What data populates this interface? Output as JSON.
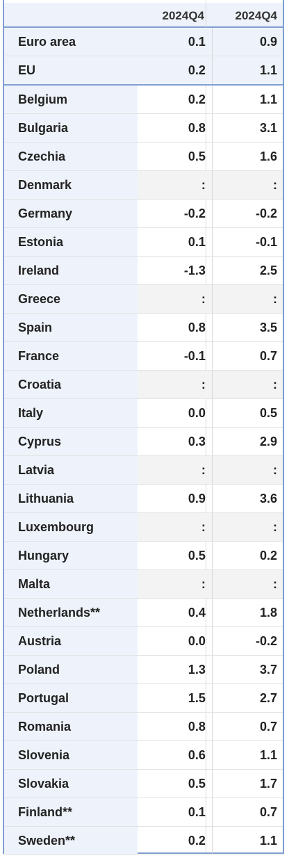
{
  "chart_data": {
    "type": "table",
    "columns": [
      "2024Q4",
      "2024Q4"
    ],
    "rows": [
      {
        "country": "Euro area",
        "v1": "0.1",
        "v2": "0.9"
      },
      {
        "country": "EU",
        "v1": "0.2",
        "v2": "1.1"
      },
      {
        "country": "Belgium",
        "v1": "0.2",
        "v2": "1.1"
      },
      {
        "country": "Bulgaria",
        "v1": "0.8",
        "v2": "3.1"
      },
      {
        "country": "Czechia",
        "v1": "0.5",
        "v2": "1.6"
      },
      {
        "country": "Denmark",
        "v1": ":",
        "v2": ":"
      },
      {
        "country": "Germany",
        "v1": "-0.2",
        "v2": "-0.2"
      },
      {
        "country": "Estonia",
        "v1": "0.1",
        "v2": "-0.1"
      },
      {
        "country": "Ireland",
        "v1": "-1.3",
        "v2": "2.5"
      },
      {
        "country": "Greece",
        "v1": ":",
        "v2": ":"
      },
      {
        "country": "Spain",
        "v1": "0.8",
        "v2": "3.5"
      },
      {
        "country": "France",
        "v1": "-0.1",
        "v2": "0.7"
      },
      {
        "country": "Croatia",
        "v1": ":",
        "v2": ":"
      },
      {
        "country": "Italy",
        "v1": "0.0",
        "v2": "0.5"
      },
      {
        "country": "Cyprus",
        "v1": "0.3",
        "v2": "2.9"
      },
      {
        "country": "Latvia",
        "v1": ":",
        "v2": ":"
      },
      {
        "country": "Lithuania",
        "v1": "0.9",
        "v2": "3.6"
      },
      {
        "country": "Luxembourg",
        "v1": ":",
        "v2": ":"
      },
      {
        "country": "Hungary",
        "v1": "0.5",
        "v2": "0.2"
      },
      {
        "country": "Malta",
        "v1": ":",
        "v2": ":"
      },
      {
        "country": "Netherlands**",
        "v1": "0.4",
        "v2": "1.8"
      },
      {
        "country": "Austria",
        "v1": "0.0",
        "v2": "-0.2"
      },
      {
        "country": "Poland",
        "v1": "1.3",
        "v2": "3.7"
      },
      {
        "country": "Portugal",
        "v1": "1.5",
        "v2": "2.7"
      },
      {
        "country": "Romania",
        "v1": "0.8",
        "v2": "0.7"
      },
      {
        "country": "Slovenia",
        "v1": "0.6",
        "v2": "1.1"
      },
      {
        "country": "Slovakia",
        "v1": "0.5",
        "v2": "1.7"
      },
      {
        "country": "Finland**",
        "v1": "0.1",
        "v2": "0.7"
      },
      {
        "country": "Sweden**",
        "v1": "0.2",
        "v2": "1.1"
      }
    ],
    "aggregate_rows": 2
  }
}
